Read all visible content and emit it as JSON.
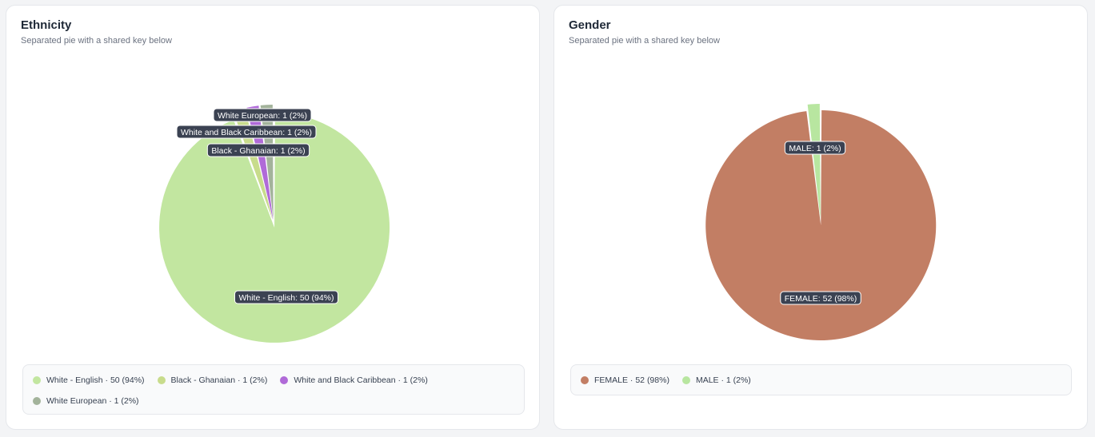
{
  "cards": [
    {
      "title": "Ethnicity",
      "subtitle": "Separated pie with a shared key below"
    },
    {
      "title": "Gender",
      "subtitle": "Separated pie with a shared key below"
    }
  ],
  "chart_data": [
    {
      "type": "pie",
      "title": "Ethnicity",
      "categories": [
        "White - English",
        "Black - Ghanaian",
        "White and Black Caribbean",
        "White European"
      ],
      "values": [
        50,
        1,
        1,
        1
      ],
      "percents": [
        94,
        2,
        2,
        2
      ],
      "colors": [
        "#c2e6a0",
        "#c8dc8c",
        "#b06ad8",
        "#a3b39b"
      ],
      "labels": [
        "White - English: 50 (94%)",
        "Black - Ghanaian: 1 (2%)",
        "White and Black Caribbean: 1 (2%)",
        "White European: 1 (2%)"
      ],
      "legend": [
        "White - English · 50 (94%)",
        "Black - Ghanaian · 1 (2%)",
        "White and Black Caribbean · 1 (2%)",
        "White European · 1 (2%)"
      ],
      "legend_position": "bottom"
    },
    {
      "type": "pie",
      "title": "Gender",
      "categories": [
        "FEMALE",
        "MALE"
      ],
      "values": [
        52,
        1
      ],
      "percents": [
        98,
        2
      ],
      "colors": [
        "#c27e64",
        "#b8e6a0"
      ],
      "labels": [
        "FEMALE: 52 (98%)",
        "MALE: 1 (2%)"
      ],
      "legend": [
        "FEMALE · 52 (98%)",
        "MALE · 1 (2%)"
      ],
      "legend_position": "bottom"
    }
  ]
}
